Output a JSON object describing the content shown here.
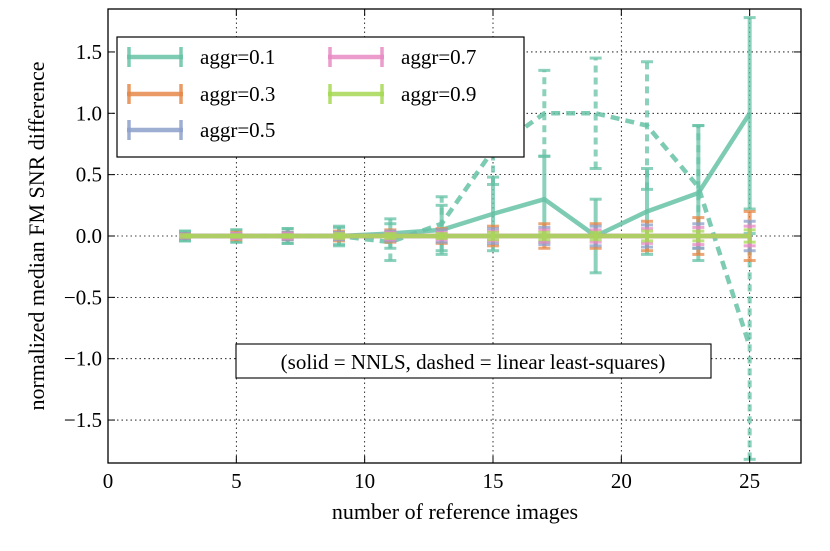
{
  "chart_data": {
    "type": "line",
    "title": "",
    "xlabel": "number of reference images",
    "ylabel": "normalized median FM SNR difference",
    "xlim": [
      0,
      27
    ],
    "ylim": [
      -1.85,
      1.85
    ],
    "xticks": [
      0,
      5,
      10,
      15,
      20,
      25
    ],
    "xtick_labels": [
      "0",
      "5",
      "10",
      "15",
      "20",
      "25"
    ],
    "yticks": [
      1.5,
      1.0,
      0.5,
      0.0,
      -0.5,
      -1.0,
      -1.5
    ],
    "ytick_labels": [
      "1.5",
      "1.0",
      "0.5",
      "0.0",
      "−0.5",
      "−1.0",
      "−1.5"
    ],
    "grid": true,
    "legend_position": "top-left",
    "annotation": "(solid = NNLS, dashed = linear least-squares)",
    "x": [
      3,
      5,
      7,
      9,
      11,
      13,
      15,
      17,
      19,
      21,
      23,
      25
    ],
    "series": [
      {
        "name": "aggr=0.1",
        "color": "#66c2a5",
        "style": "solid",
        "values": [
          0,
          0,
          0,
          0,
          0.02,
          0.05,
          0.18,
          0.3,
          0.0,
          0.2,
          0.35,
          1.0
        ],
        "errors": [
          0.04,
          0.05,
          0.06,
          0.07,
          0.12,
          0.2,
          0.3,
          0.35,
          0.3,
          0.35,
          0.55,
          0.78
        ]
      },
      {
        "name": "aggr=0.1",
        "color": "#66c2a5",
        "style": "dashed",
        "values": [
          0,
          0,
          0,
          0,
          -0.05,
          0.1,
          0.7,
          1.0,
          1.0,
          0.9,
          0.4,
          -0.9
        ],
        "errors": [
          0.04,
          0.05,
          0.06,
          0.08,
          0.15,
          0.22,
          0.28,
          0.35,
          0.45,
          0.52,
          0.5,
          0.92
        ]
      },
      {
        "name": "aggr=0.3",
        "color": "#e5884a",
        "style": "solid",
        "values": [
          0,
          0,
          0,
          0,
          0,
          0,
          0,
          0,
          0,
          0,
          0,
          0
        ],
        "errors": [
          0.02,
          0.03,
          0.03,
          0.04,
          0.05,
          0.06,
          0.08,
          0.1,
          0.1,
          0.12,
          0.15,
          0.2
        ]
      },
      {
        "name": "aggr=0.5",
        "color": "#8da0cb",
        "style": "solid",
        "values": [
          0,
          0,
          0,
          0,
          0,
          0,
          0,
          0,
          0,
          0,
          0,
          0
        ],
        "errors": [
          0.02,
          0.02,
          0.03,
          0.03,
          0.04,
          0.05,
          0.06,
          0.07,
          0.08,
          0.09,
          0.1,
          0.12
        ]
      },
      {
        "name": "aggr=0.7",
        "color": "#e78ac3",
        "style": "solid",
        "values": [
          0,
          0,
          0,
          0,
          0,
          0,
          0,
          0,
          0,
          0,
          0,
          0
        ],
        "errors": [
          0.01,
          0.02,
          0.02,
          0.02,
          0.03,
          0.03,
          0.04,
          0.05,
          0.05,
          0.06,
          0.07,
          0.08
        ]
      },
      {
        "name": "aggr=0.9",
        "color": "#a6d854",
        "style": "solid",
        "values": [
          0,
          0,
          0,
          0,
          0,
          0,
          0,
          0,
          0,
          0,
          0,
          0
        ],
        "errors": [
          0.01,
          0.01,
          0.01,
          0.02,
          0.02,
          0.02,
          0.03,
          0.03,
          0.03,
          0.04,
          0.04,
          0.05
        ]
      }
    ],
    "legend": [
      {
        "label": "aggr=0.1",
        "color": "#66c2a5"
      },
      {
        "label": "aggr=0.3",
        "color": "#e5884a"
      },
      {
        "label": "aggr=0.5",
        "color": "#8da0cb"
      },
      {
        "label": "aggr=0.7",
        "color": "#e78ac3"
      },
      {
        "label": "aggr=0.9",
        "color": "#a6d854"
      }
    ]
  }
}
